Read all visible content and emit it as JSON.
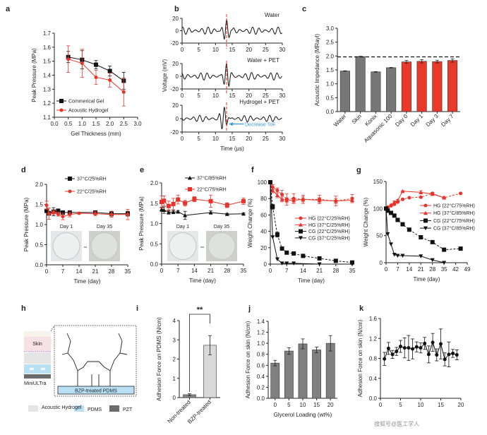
{
  "panel_labels": [
    "a",
    "b",
    "c",
    "d",
    "e",
    "f",
    "g",
    "h",
    "i",
    "j",
    "k"
  ],
  "watermark": "搜狐号@医工学人",
  "diagram_h": {
    "skin_label": "Skin",
    "device_label": "MiniULTra",
    "substrate_label": "BZP-treated PDMS",
    "legend": [
      "Acoustic Hydrogel",
      "PDMS",
      "PZT"
    ],
    "colors": {
      "hydrogel": "#e4e4e4",
      "pdms": "#b8e0f5",
      "pzt": "#6b6b6b",
      "skin": "#f6e1e6"
    }
  },
  "photos": {
    "day1": "Day 1",
    "day35": "Day 35"
  },
  "chart_data": [
    {
      "panel": "a",
      "type": "line",
      "xlabel": "Gel Thickness (mm)",
      "ylabel": "Peak Pressure (MPa)",
      "xlim": [
        0,
        3
      ],
      "ylim": [
        1.1,
        1.7
      ],
      "x_ticks": [
        "0.0",
        "0.5",
        "1.0",
        "1.5",
        "2.0",
        "2.5",
        "3.0"
      ],
      "y_ticks": [
        "1.1",
        "1.2",
        "1.3",
        "1.4",
        "1.5",
        "1.6",
        "1.7"
      ],
      "legend": "bottom-left",
      "series": [
        {
          "name": "Commerical Gel",
          "color": "#111111",
          "marker": "square",
          "x": [
            0.5,
            1,
            1.5,
            2,
            2.5
          ],
          "values": [
            1.53,
            1.51,
            1.475,
            1.43,
            1.36
          ],
          "err": [
            0.04,
            0.065,
            0.03,
            0.035,
            0.06
          ]
        },
        {
          "name": "Acoustic Hydrogel",
          "color": "#e8332a",
          "marker": "circle",
          "x": [
            0.5,
            1,
            1.5,
            2,
            2.5
          ],
          "values": [
            1.515,
            1.485,
            1.385,
            1.365,
            1.28
          ],
          "err": [
            0.095,
            0.1,
            0.05,
            0.05,
            0.1
          ]
        }
      ]
    },
    {
      "panel": "b",
      "type": "line",
      "title": "Water",
      "xlim": [
        0,
        30
      ],
      "ylim": [
        -20,
        20
      ],
      "x_ticks": [
        "0",
        "5",
        "10",
        "15",
        "20",
        "25",
        "30"
      ],
      "y_ticks": [
        "-20",
        "0",
        "20"
      ],
      "marker_line_x": 13.3
    },
    {
      "panel": "b",
      "type": "line",
      "title": "Water + PET",
      "ylabel": "Voltage (mV)",
      "xlim": [
        0,
        30
      ],
      "ylim": [
        -20,
        20
      ],
      "x_ticks": [
        "0",
        "5",
        "10",
        "15",
        "20",
        "25",
        "30"
      ],
      "y_ticks": [
        "-20",
        "0",
        "20"
      ],
      "marker_line_x": 13.3
    },
    {
      "panel": "b",
      "type": "line",
      "title": "Hydrogel + PET",
      "xlabel": "Time (µs)",
      "xlim": [
        0,
        30
      ],
      "ylim": [
        -20,
        20
      ],
      "x_ticks": [
        "0",
        "5",
        "10",
        "15",
        "20",
        "25",
        "30"
      ],
      "y_ticks": [
        "-20",
        "0",
        "20"
      ],
      "marker_line_x": 13.3,
      "annotation": "Decrease ToF",
      "annotation_color": "#3a9ad9"
    },
    {
      "panel": "c",
      "type": "bar",
      "ylabel": "Acoustic Impedance (MRayl)",
      "ylim": [
        0,
        3
      ],
      "y_ticks": [
        "0.0",
        "0.5",
        "1.0",
        "1.5",
        "2.0",
        "2.5",
        "3.0"
      ],
      "categories": [
        "Water",
        "Skin",
        "Konix",
        "Aquasonic 100",
        "Day 0",
        "Day 1",
        "Day 3",
        "Day 7"
      ],
      "values": [
        1.46,
        1.98,
        1.43,
        1.58,
        1.79,
        1.81,
        1.8,
        1.84
      ],
      "err": [
        0.01,
        0.01,
        0.01,
        0.01,
        0.05,
        0.06,
        0.05,
        0.06
      ],
      "colors": [
        "#777777",
        "#777777",
        "#777777",
        "#777777",
        "#e8392a",
        "#e8392a",
        "#e8392a",
        "#e8392a"
      ],
      "reference_line": 1.97
    },
    {
      "panel": "d",
      "type": "line",
      "xlabel": "Time (day)",
      "ylabel": "Peak Pressure (MPa)",
      "xlim": [
        0,
        35
      ],
      "ylim": [
        0,
        2
      ],
      "x_ticks": [
        "0",
        "7",
        "14",
        "21",
        "28",
        "35"
      ],
      "y_ticks": [
        "0.0",
        "0.5",
        "1.0",
        "1.5",
        "2.0"
      ],
      "legend": "top",
      "series": [
        {
          "name": "37°C/25%RH",
          "color": "#111111",
          "marker": "square",
          "x": [
            0,
            1,
            3,
            5,
            7,
            10,
            21,
            28,
            35
          ],
          "values": [
            1.34,
            1.28,
            1.32,
            1.34,
            1.3,
            1.3,
            1.3,
            1.27,
            1.27
          ],
          "err": [
            0.04,
            0.05,
            0.1,
            0.05,
            0.03,
            0.03,
            0.03,
            0.06,
            0.06
          ]
        },
        {
          "name": "22°C/25%RH",
          "color": "#e8332a",
          "marker": "circle",
          "x": [
            0,
            1,
            3,
            5,
            7,
            10,
            14,
            21,
            28,
            35
          ],
          "values": [
            1.48,
            1.27,
            1.3,
            1.26,
            1.2,
            1.25,
            1.28,
            1.27,
            1.25,
            1.25
          ],
          "err": [
            0.1,
            0.14,
            0.05,
            0.05,
            0.08,
            0.06,
            0.02,
            0.05,
            0.07,
            0.13
          ]
        }
      ]
    },
    {
      "panel": "e",
      "type": "line",
      "xlabel": "Time (day)",
      "ylabel": "Peak Pressure (MPa)",
      "xlim": [
        0,
        35
      ],
      "ylim": [
        0,
        2
      ],
      "x_ticks": [
        "0",
        "7",
        "14",
        "21",
        "28",
        "35"
      ],
      "y_ticks": [
        "0.0",
        "0.5",
        "1.0",
        "1.5",
        "2.0"
      ],
      "legend": "top",
      "series": [
        {
          "name": "37°C/85%RH",
          "color": "#111111",
          "marker": "triangle",
          "x": [
            0,
            1,
            3,
            5,
            7,
            10,
            21,
            28,
            35
          ],
          "values": [
            1.35,
            1.33,
            1.28,
            1.28,
            1.29,
            1.2,
            1.27,
            1.23,
            1.24
          ],
          "err": [
            0.05,
            0.08,
            0.05,
            0.04,
            0.03,
            0.1,
            0.04,
            0.02,
            0.02
          ]
        },
        {
          "name": "22°C/75%RH",
          "color": "#e8332a",
          "marker": "square",
          "x": [
            0,
            1,
            3,
            5,
            7,
            10,
            14,
            21,
            28,
            35
          ],
          "values": [
            1.53,
            1.56,
            1.43,
            1.48,
            1.59,
            1.5,
            1.6,
            1.55,
            1.45,
            1.55
          ],
          "err": [
            0.15,
            0.12,
            0.12,
            0.14,
            0.11,
            0.07,
            0.06,
            0.15,
            0.06,
            0.08
          ]
        }
      ]
    },
    {
      "panel": "f",
      "type": "line",
      "xlabel": "Time (day)",
      "ylabel": "Weight Change (%)",
      "xlim": [
        0,
        35
      ],
      "ylim": [
        0,
        100
      ],
      "x_ticks": [
        "0",
        "7",
        "14",
        "21",
        "28",
        "35"
      ],
      "y_ticks": [
        "0",
        "20",
        "40",
        "60",
        "80",
        "100"
      ],
      "legend": "right",
      "series": [
        {
          "name": "HG (22°C/25%RH)",
          "color": "#e8332a",
          "marker": "circle",
          "dashed": true,
          "x": [
            0,
            1,
            3,
            5,
            7,
            10,
            14,
            21,
            28,
            35
          ],
          "values": [
            100,
            94,
            90,
            85,
            79,
            80,
            79,
            79,
            77,
            80
          ],
          "err": [
            1,
            3,
            3,
            5,
            7,
            6,
            5,
            5,
            6,
            5
          ]
        },
        {
          "name": "HG (37°C/25%RH)",
          "color": "#e8332a",
          "marker": "triangle",
          "x": [
            0,
            1,
            3,
            5,
            7,
            10,
            14,
            21,
            28,
            35
          ],
          "values": [
            100,
            90,
            84,
            79,
            78,
            78,
            79,
            78,
            77,
            78
          ],
          "err": [
            1,
            3,
            3,
            3,
            3,
            3,
            3,
            3,
            3,
            3
          ]
        },
        {
          "name": "CG (22°C/25%RH)",
          "color": "#111111",
          "marker": "square",
          "dashed": true,
          "x": [
            0,
            1,
            3,
            5,
            7,
            10,
            14,
            21,
            28,
            35
          ],
          "values": [
            100,
            70,
            36,
            19,
            14,
            13,
            10,
            7,
            4,
            2
          ],
          "err": [
            1,
            3,
            3,
            1,
            1,
            1,
            1,
            1,
            1,
            1
          ]
        },
        {
          "name": "CG (37°C/25%RH)",
          "color": "#111111",
          "marker": "triangle-down",
          "x": [
            0,
            1,
            3,
            5,
            7,
            10,
            21,
            35
          ],
          "values": [
            100,
            33,
            6,
            1,
            1,
            1,
            0,
            0
          ],
          "err": [
            0,
            0,
            0,
            0,
            0,
            0,
            0,
            0
          ]
        }
      ]
    },
    {
      "panel": "g",
      "type": "line",
      "xlabel": "Time (day)",
      "ylabel": "Weight Change (%)",
      "xlim": [
        0,
        49
      ],
      "ylim": [
        0,
        150
      ],
      "x_ticks": [
        "0",
        "7",
        "14",
        "21",
        "28",
        "35",
        "42",
        "49"
      ],
      "y_ticks": [
        "0",
        "50",
        "100",
        "150"
      ],
      "legend": "right",
      "series": [
        {
          "name": "HG (22°C/75%RH)",
          "color": "#e8332a",
          "marker": "circle",
          "dashed": true,
          "x": [
            0,
            1,
            3,
            5,
            7,
            10,
            14,
            21,
            28,
            35,
            45
          ],
          "values": [
            100,
            102,
            105,
            108,
            112,
            117,
            120,
            121,
            128,
            120,
            128
          ],
          "err": [
            1,
            1,
            1,
            2,
            2,
            1,
            1,
            1,
            2,
            1,
            1
          ]
        },
        {
          "name": "HG (37°C/85%RH)",
          "color": "#e8332a",
          "marker": "triangle",
          "x": [
            0,
            1,
            3,
            5,
            7,
            10,
            21,
            28,
            35
          ],
          "values": [
            100,
            103,
            107,
            112,
            115,
            132,
            130,
            127,
            120
          ],
          "err": [
            1,
            1,
            1,
            2,
            2,
            1,
            3,
            3,
            1
          ]
        },
        {
          "name": "CG (22°C/75%RH)",
          "color": "#111111",
          "marker": "square",
          "dashed": true,
          "x": [
            0,
            1,
            3,
            5,
            7,
            10,
            14,
            21,
            28,
            35,
            45
          ],
          "values": [
            100,
            96,
            92,
            87,
            79,
            71,
            61,
            47,
            38,
            24,
            26
          ],
          "err": [
            0,
            0,
            0,
            0,
            0,
            0,
            0,
            0,
            0,
            0,
            0
          ]
        },
        {
          "name": "CG (37°C/85%RH)",
          "color": "#111111",
          "marker": "triangle-down",
          "x": [
            0,
            1,
            3,
            5,
            7,
            10,
            21,
            28,
            35
          ],
          "values": [
            100,
            53,
            34,
            15,
            13,
            13,
            12,
            5,
            0
          ],
          "err": [
            0,
            0,
            0,
            0,
            0,
            0,
            0,
            0,
            0
          ]
        }
      ]
    },
    {
      "panel": "i",
      "type": "bar",
      "ylabel": "Adhesion Force on PDMS (N/cm)",
      "ylim": [
        0,
        4
      ],
      "y_ticks": [
        "0",
        "1",
        "2",
        "3",
        "4"
      ],
      "categories": [
        "Non-treated",
        "BZP-treated"
      ],
      "values": [
        0.15,
        2.72
      ],
      "err": [
        0.05,
        0.5
      ],
      "colors": [
        "#888888",
        "#d9d9d9"
      ],
      "significance": "**"
    },
    {
      "panel": "j",
      "type": "bar",
      "xlabel": "Glycerol Loading (wt%)",
      "ylabel": "Adhesion Force on skin (N/cm)",
      "ylim": [
        0,
        1.4
      ],
      "y_ticks": [
        "0.0",
        "0.2",
        "0.4",
        "0.6",
        "0.8",
        "1.0",
        "1.2",
        "1.4"
      ],
      "categories": [
        "0",
        "5",
        "10",
        "15",
        "20"
      ],
      "values": [
        0.64,
        0.86,
        0.99,
        0.88,
        1.0
      ],
      "err": [
        0.05,
        0.06,
        0.09,
        0.05,
        0.14
      ],
      "colors": [
        "#808080",
        "#808080",
        "#808080",
        "#808080",
        "#808080"
      ]
    },
    {
      "panel": "k",
      "type": "line",
      "ylabel": "Adhesion Force on skin (N/cm)",
      "xlim": [
        0,
        20
      ],
      "ylim": [
        0,
        1.6
      ],
      "x_ticks": [
        "0",
        "5",
        "10",
        "15",
        "20"
      ],
      "y_ticks": [
        "0.0",
        "0.4",
        "0.8",
        "1.2",
        "1.6"
      ],
      "series": [
        {
          "color": "#111111",
          "marker": "circle",
          "x": [
            1,
            2,
            3,
            4,
            5,
            6,
            7,
            8,
            9,
            10,
            11,
            12,
            13,
            14,
            15,
            16,
            17,
            18,
            19
          ],
          "values": [
            0.79,
            1.0,
            0.88,
            0.94,
            1.04,
            1.01,
            1.01,
            0.99,
            1.03,
            1.01,
            1.1,
            0.88,
            1.12,
            0.87,
            1.09,
            0.78,
            0.88,
            0.9,
            0.87
          ],
          "err": [
            0.13,
            0.12,
            0.08,
            0.08,
            0.12,
            0.2,
            0.25,
            0.2,
            0.1,
            0.1,
            0.12,
            0.17,
            0.18,
            0.12,
            0.3,
            0.13,
            0.25,
            0.08,
            0.1
          ]
        }
      ]
    }
  ]
}
